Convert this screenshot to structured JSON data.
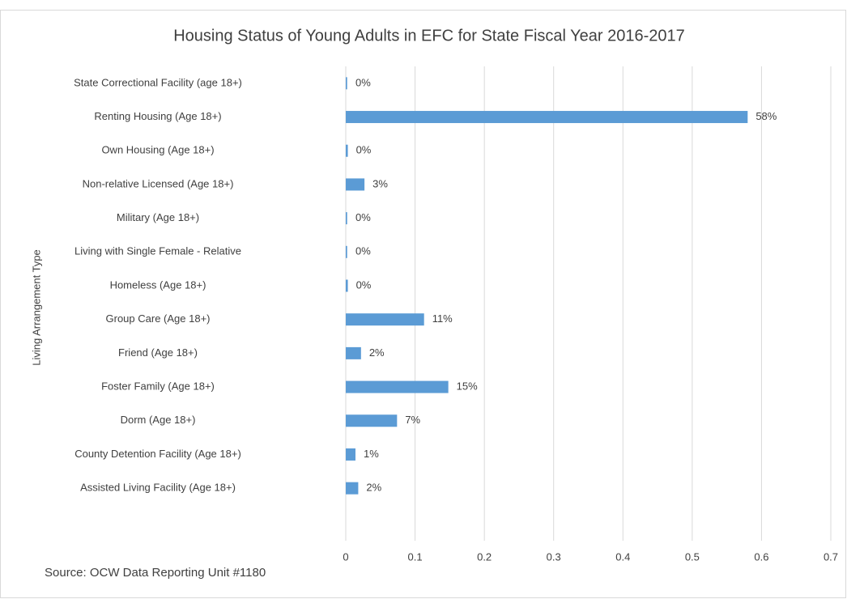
{
  "chart_data": {
    "type": "bar",
    "orientation": "horizontal",
    "title": "Housing Status of Young Adults in EFC for State Fiscal Year 2016-2017",
    "y_label": "Living Arrangement Type",
    "source": "Source: OCW Data Reporting Unit #1180",
    "categories": [
      "State Correctional Facility (age 18+)",
      "Renting Housing (Age 18+)",
      "Own Housing (Age 18+)",
      "Non-relative Licensed (Age 18+)",
      "Military (Age 18+)",
      "Living with Single Female - Relative",
      "Homeless (Age 18+)",
      "Group Care (Age 18+)",
      "Friend (Age 18+)",
      "Foster Family (Age 18+)",
      "Dorm (Age 18+)",
      "County Detention Facility (Age 18+)",
      "Assisted Living Facility (Age 18+)"
    ],
    "values": [
      0.002,
      0.58,
      0.003,
      0.027,
      0.002,
      0.002,
      0.003,
      0.113,
      0.022,
      0.148,
      0.074,
      0.014,
      0.018
    ],
    "value_labels": [
      "0%",
      "58%",
      "0%",
      "3%",
      "0%",
      "0%",
      "0%",
      "11%",
      "2%",
      "15%",
      "7%",
      "1%",
      "2%"
    ],
    "color": "#5b9bd5",
    "xlim": [
      0,
      0.7
    ],
    "xticks": [
      0,
      0.1,
      0.2,
      0.3,
      0.4,
      0.5,
      0.6,
      0.7
    ],
    "grid": true
  }
}
